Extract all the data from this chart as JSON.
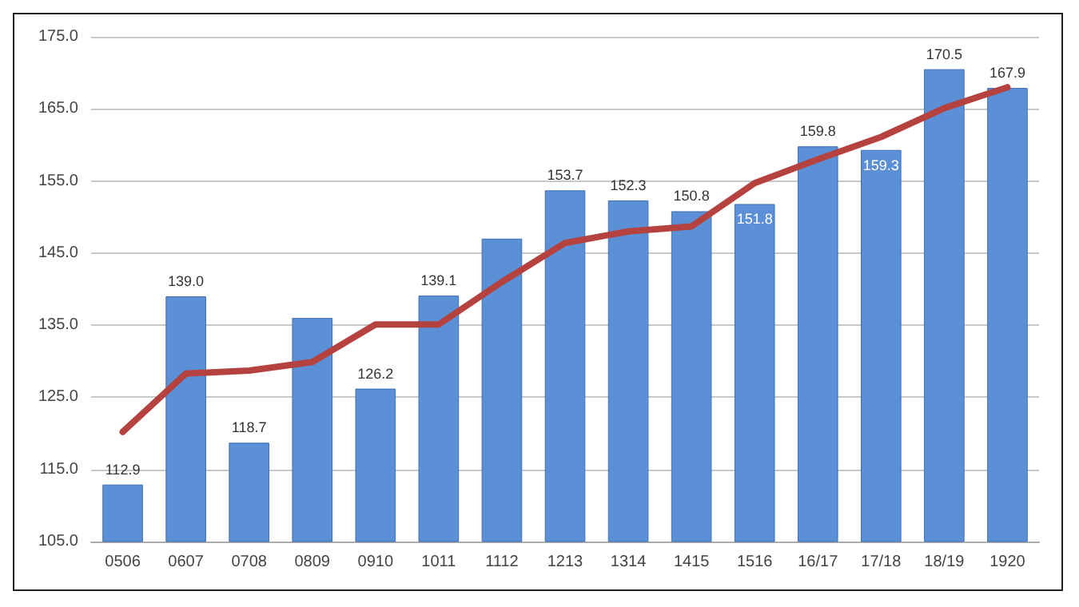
{
  "chart_data": {
    "type": "bar",
    "categories": [
      "0506",
      "0607",
      "0708",
      "0809",
      "0910",
      "1011",
      "1112",
      "1213",
      "1314",
      "1415",
      "1516",
      "16/17",
      "17/18",
      "18/19",
      "1920"
    ],
    "series": [
      {
        "color": "#5b8fd6",
        "values": [
          112.9,
          139.0,
          118.7,
          136,
          126.2,
          139.1,
          147,
          153.7,
          152.3,
          150.8,
          151.8,
          159.8,
          159.3,
          170.5,
          167.9
        ],
        "value_labels": [
          "112.9",
          "139.0",
          "118.7",
          null,
          "126.2",
          "139.1",
          null,
          "153.7",
          "152.3",
          "150.8",
          "151.8",
          "159.8",
          "159.3",
          "170.5",
          "167.9"
        ]
      },
      {
        "type": "line",
        "color": "#b5423e",
        "values": [
          120.2,
          128.3,
          128.7,
          129.9,
          135.1,
          135.1,
          141,
          146.4,
          148.0,
          148.7,
          154.7,
          158,
          161.1,
          165.1,
          168.0
        ]
      }
    ],
    "ylim": [
      105,
      175
    ],
    "yticks": [
      {
        "value": 105,
        "label": "105.0"
      },
      {
        "value": 115,
        "label": "115.0"
      },
      {
        "value": 125,
        "label": "125.0"
      },
      {
        "value": 135,
        "label": "135.0"
      },
      {
        "value": 145,
        "label": "145.0"
      },
      {
        "value": 155,
        "label": "155.0"
      },
      {
        "value": 165,
        "label": "165.0"
      },
      {
        "value": 175,
        "label": "175.0"
      }
    ],
    "grid": "y",
    "marker": "none",
    "line_style": "solid"
  }
}
